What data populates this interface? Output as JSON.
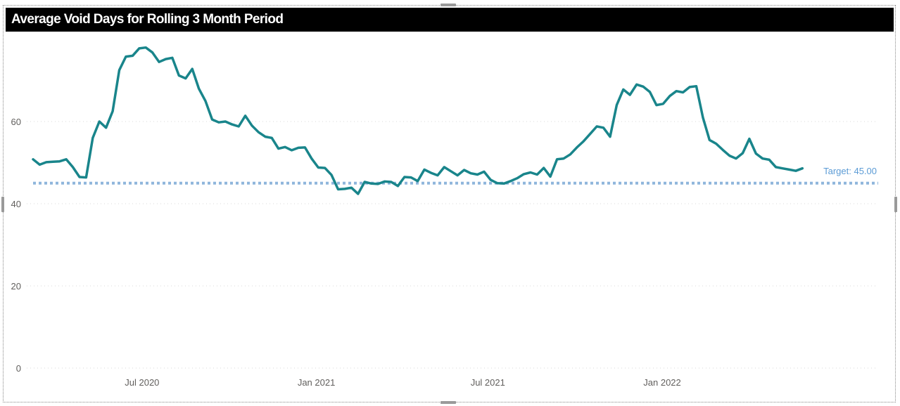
{
  "visual": {
    "title": "Average Void Days for Rolling 3 Month Period"
  },
  "colors": {
    "line": "#19858b",
    "target": "#8fb6dc",
    "target_text": "#5b9bd5",
    "grid": "#d9d9d9",
    "title_bg": "#000000"
  },
  "chart_data": {
    "type": "line",
    "title": "Average Void Days for Rolling 3 Month Period",
    "xlabel": "",
    "ylabel": "",
    "ylim": [
      0,
      80
    ],
    "yticks": [
      0,
      20,
      40,
      60
    ],
    "xlim": [
      "2020-03-08",
      "2022-08-17"
    ],
    "xticks": [
      {
        "label": "Jul 2020",
        "date": "2020-07-01"
      },
      {
        "label": "Jan 2021",
        "date": "2021-01-01"
      },
      {
        "label": "Jul 2021",
        "date": "2021-07-01"
      },
      {
        "label": "Jan 2022",
        "date": "2022-01-01"
      }
    ],
    "grid": true,
    "reference_line": {
      "label": "Target: 45.00",
      "value": 45
    },
    "series": [
      {
        "values": [
          [
            "2020-03-08",
            50.8
          ],
          [
            "2020-03-15",
            49.5
          ],
          [
            "2020-03-22",
            50.1
          ],
          [
            "2020-03-29",
            50.2
          ],
          [
            "2020-04-05",
            50.3
          ],
          [
            "2020-04-12",
            50.8
          ],
          [
            "2020-04-19",
            48.9
          ],
          [
            "2020-04-26",
            46.5
          ],
          [
            "2020-05-03",
            46.4
          ],
          [
            "2020-05-10",
            56.0
          ],
          [
            "2020-05-17",
            60.0
          ],
          [
            "2020-05-24",
            58.5
          ],
          [
            "2020-05-31",
            62.5
          ],
          [
            "2020-06-07",
            72.5
          ],
          [
            "2020-06-14",
            75.8
          ],
          [
            "2020-06-21",
            76.0
          ],
          [
            "2020-06-28",
            77.8
          ],
          [
            "2020-07-05",
            78.0
          ],
          [
            "2020-07-12",
            76.8
          ],
          [
            "2020-07-19",
            74.5
          ],
          [
            "2020-07-26",
            75.2
          ],
          [
            "2020-08-02",
            75.5
          ],
          [
            "2020-08-09",
            71.2
          ],
          [
            "2020-08-16",
            70.5
          ],
          [
            "2020-08-23",
            72.8
          ],
          [
            "2020-08-30",
            68.0
          ],
          [
            "2020-09-06",
            65.0
          ],
          [
            "2020-09-13",
            60.5
          ],
          [
            "2020-09-20",
            59.8
          ],
          [
            "2020-09-27",
            60.0
          ],
          [
            "2020-10-04",
            59.3
          ],
          [
            "2020-10-11",
            58.8
          ],
          [
            "2020-10-18",
            61.4
          ],
          [
            "2020-10-25",
            59.0
          ],
          [
            "2020-11-01",
            57.4
          ],
          [
            "2020-11-08",
            56.3
          ],
          [
            "2020-11-15",
            56.0
          ],
          [
            "2020-11-22",
            53.4
          ],
          [
            "2020-11-29",
            53.8
          ],
          [
            "2020-12-06",
            53.0
          ],
          [
            "2020-12-13",
            53.6
          ],
          [
            "2020-12-20",
            53.7
          ],
          [
            "2020-12-27",
            51.0
          ],
          [
            "2021-01-03",
            48.8
          ],
          [
            "2021-01-10",
            48.7
          ],
          [
            "2021-01-17",
            47.0
          ],
          [
            "2021-01-24",
            43.5
          ],
          [
            "2021-01-31",
            43.6
          ],
          [
            "2021-02-07",
            43.9
          ],
          [
            "2021-02-14",
            42.4
          ],
          [
            "2021-02-21",
            45.3
          ],
          [
            "2021-02-28",
            44.9
          ],
          [
            "2021-03-07",
            44.8
          ],
          [
            "2021-03-14",
            45.4
          ],
          [
            "2021-03-21",
            45.3
          ],
          [
            "2021-03-28",
            44.3
          ],
          [
            "2021-04-04",
            46.5
          ],
          [
            "2021-04-11",
            46.4
          ],
          [
            "2021-04-18",
            45.5
          ],
          [
            "2021-04-25",
            48.3
          ],
          [
            "2021-05-02",
            47.5
          ],
          [
            "2021-05-09",
            46.9
          ],
          [
            "2021-05-16",
            48.9
          ],
          [
            "2021-05-23",
            47.9
          ],
          [
            "2021-05-30",
            46.9
          ],
          [
            "2021-06-06",
            48.2
          ],
          [
            "2021-06-13",
            47.4
          ],
          [
            "2021-06-20",
            47.1
          ],
          [
            "2021-06-27",
            47.8
          ],
          [
            "2021-07-04",
            45.8
          ],
          [
            "2021-07-11",
            45.0
          ],
          [
            "2021-07-18",
            44.9
          ],
          [
            "2021-07-25",
            45.5
          ],
          [
            "2021-08-01",
            46.2
          ],
          [
            "2021-08-08",
            47.2
          ],
          [
            "2021-08-15",
            47.6
          ],
          [
            "2021-08-22",
            47.1
          ],
          [
            "2021-08-29",
            48.7
          ],
          [
            "2021-09-05",
            46.6
          ],
          [
            "2021-09-12",
            50.8
          ],
          [
            "2021-09-19",
            51.0
          ],
          [
            "2021-09-26",
            52.0
          ],
          [
            "2021-10-03",
            53.7
          ],
          [
            "2021-10-10",
            55.2
          ],
          [
            "2021-10-17",
            57.0
          ],
          [
            "2021-10-24",
            58.8
          ],
          [
            "2021-10-31",
            58.5
          ],
          [
            "2021-11-07",
            56.3
          ],
          [
            "2021-11-14",
            64.0
          ],
          [
            "2021-11-21",
            67.8
          ],
          [
            "2021-11-28",
            66.5
          ],
          [
            "2021-12-05",
            69.0
          ],
          [
            "2021-12-12",
            68.5
          ],
          [
            "2021-12-19",
            67.2
          ],
          [
            "2021-12-26",
            64.0
          ],
          [
            "2022-01-02",
            64.3
          ],
          [
            "2022-01-09",
            66.2
          ],
          [
            "2022-01-16",
            67.4
          ],
          [
            "2022-01-23",
            67.1
          ],
          [
            "2022-01-30",
            68.4
          ],
          [
            "2022-02-06",
            68.6
          ],
          [
            "2022-02-13",
            61.0
          ],
          [
            "2022-02-20",
            55.5
          ],
          [
            "2022-02-27",
            54.6
          ],
          [
            "2022-03-06",
            53.1
          ],
          [
            "2022-03-13",
            51.7
          ],
          [
            "2022-03-20",
            51.0
          ],
          [
            "2022-03-27",
            52.3
          ],
          [
            "2022-04-03",
            55.8
          ],
          [
            "2022-04-10",
            52.2
          ],
          [
            "2022-04-17",
            51.0
          ],
          [
            "2022-04-24",
            50.7
          ],
          [
            "2022-05-01",
            48.9
          ],
          [
            "2022-05-08",
            48.6
          ],
          [
            "2022-05-15",
            48.3
          ],
          [
            "2022-05-22",
            48.0
          ],
          [
            "2022-05-29",
            48.6
          ]
        ]
      }
    ]
  }
}
